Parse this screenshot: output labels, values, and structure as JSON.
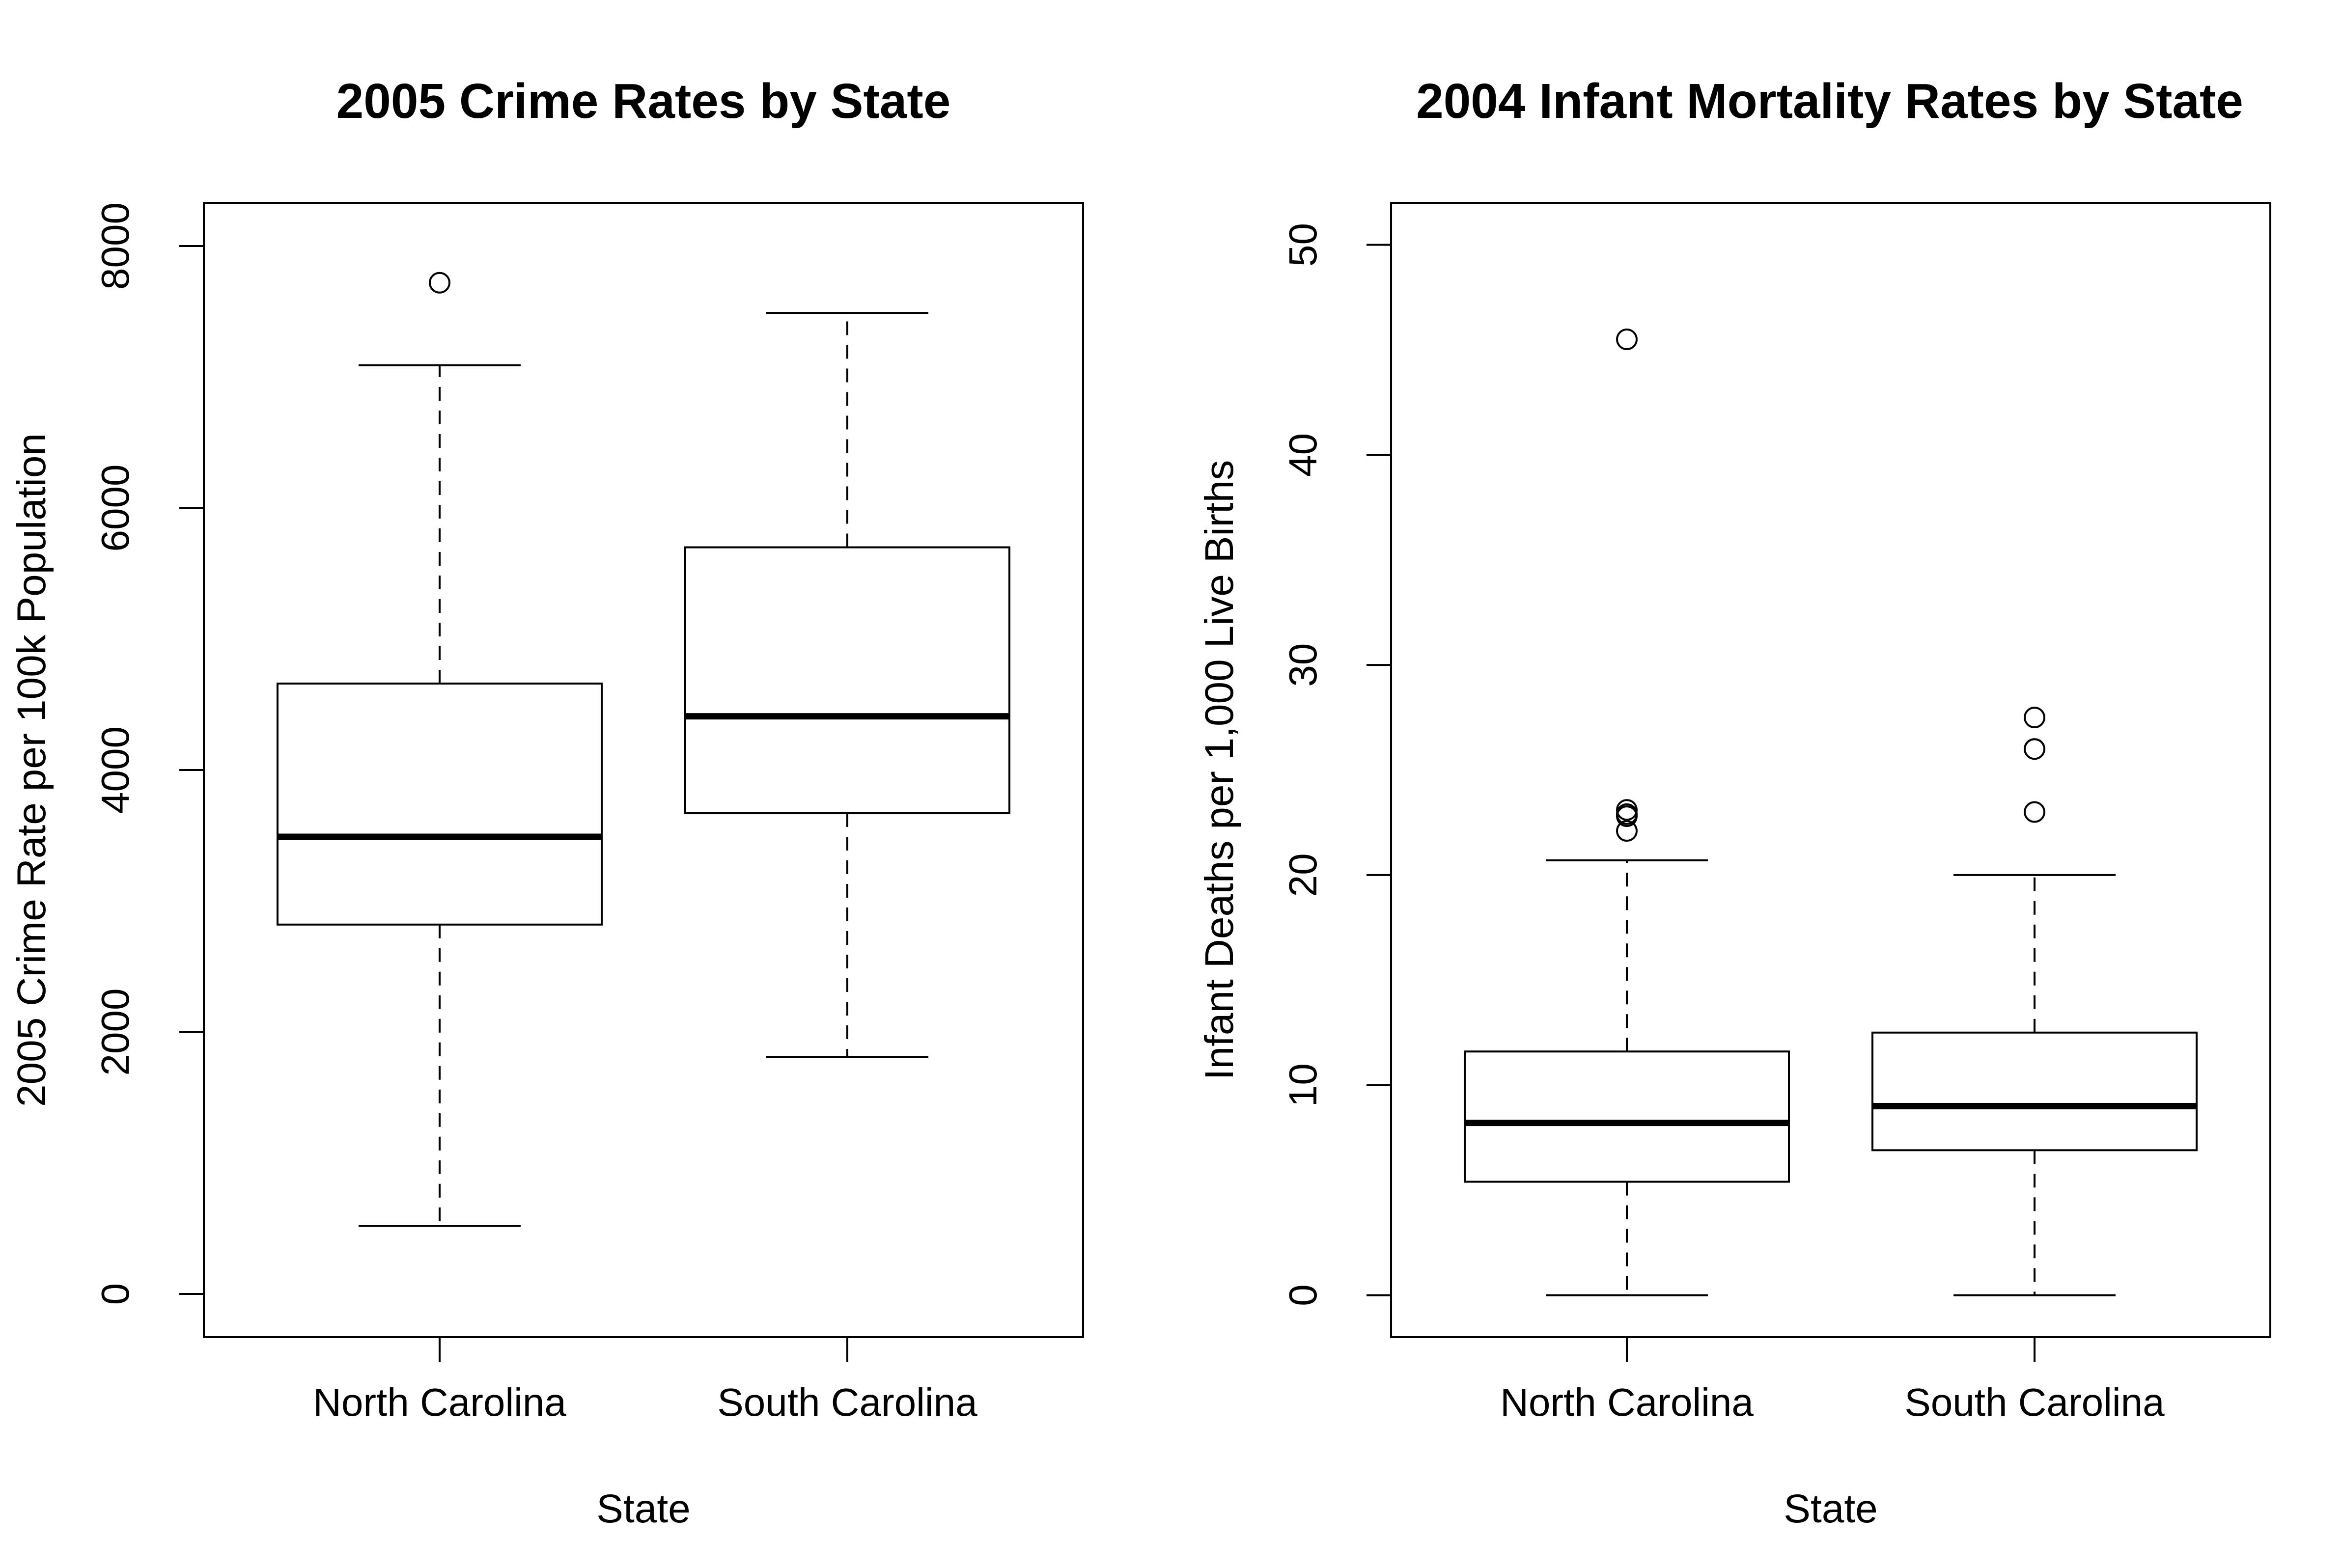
{
  "chart_data": [
    {
      "type": "box",
      "title": "2005 Crime Rates by State",
      "xlabel": "State",
      "ylabel": "2005 Crime Rate per 100k Population",
      "ylim": [
        -330,
        8330
      ],
      "yticks": [
        0,
        2000,
        4000,
        6000,
        8000
      ],
      "categories": [
        "North Carolina",
        "South Carolina"
      ],
      "boxes": [
        {
          "category": "North Carolina",
          "whisker_low": 520,
          "q1": 2820,
          "median": 3490,
          "q3": 4660,
          "whisker_high": 7090,
          "outliers": [
            7720
          ]
        },
        {
          "category": "South Carolina",
          "whisker_low": 1810,
          "q1": 3670,
          "median": 4410,
          "q3": 5700,
          "whisker_high": 7490,
          "outliers": []
        }
      ]
    },
    {
      "type": "box",
      "title": "2004 Infant Mortality Rates by State",
      "xlabel": "State",
      "ylabel": "Infant Deaths per 1,000 Live Births",
      "ylim": [
        -2,
        52
      ],
      "yticks": [
        0,
        10,
        20,
        30,
        40,
        50
      ],
      "categories": [
        "North Carolina",
        "South Carolina"
      ],
      "boxes": [
        {
          "category": "North Carolina",
          "whisker_low": 0,
          "q1": 5.4,
          "median": 8.2,
          "q3": 11.6,
          "whisker_high": 20.7,
          "outliers": [
            45.5,
            23.1,
            22.9,
            22.8,
            22.1
          ]
        },
        {
          "category": "South Carolina",
          "whisker_low": 0,
          "q1": 6.9,
          "median": 9.0,
          "q3": 12.5,
          "whisker_high": 20.0,
          "outliers": [
            27.5,
            26.0,
            26.0,
            23.0
          ]
        }
      ]
    }
  ]
}
